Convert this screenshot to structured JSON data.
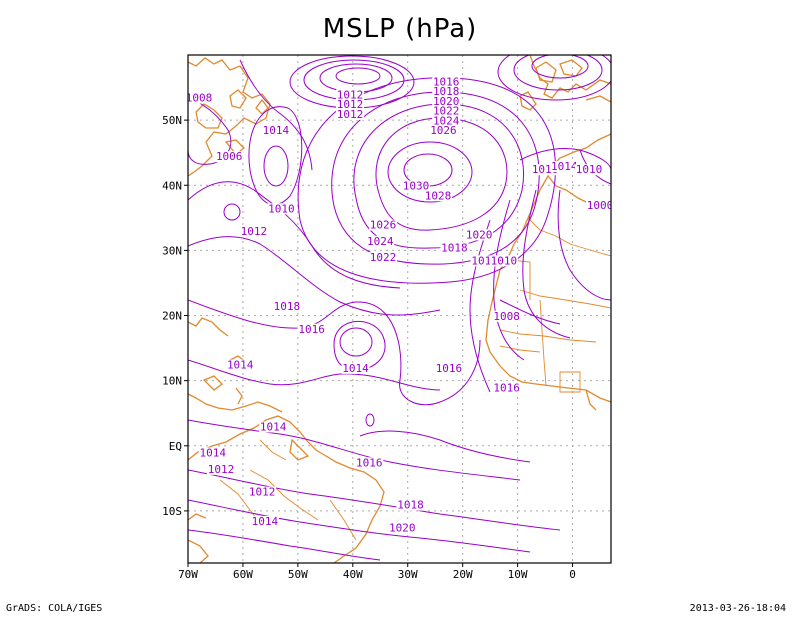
{
  "title": "MSLP (hPa)",
  "footer": {
    "left": "GrADS: COLA/IGES",
    "right": "2013-03-26-18:04"
  },
  "colors": {
    "isobar": "#9900cc",
    "coast": "#e08a2e",
    "grid": "#aaaaaa",
    "frame": "#000000"
  },
  "map": {
    "lon_range": [
      -70,
      7
    ],
    "lat_range": [
      -18,
      60
    ],
    "lon_ticks": [
      {
        "lon": -70,
        "label": "70W"
      },
      {
        "lon": -60,
        "label": "60W"
      },
      {
        "lon": -50,
        "label": "50W"
      },
      {
        "lon": -40,
        "label": "40W"
      },
      {
        "lon": -30,
        "label": "30W"
      },
      {
        "lon": -20,
        "label": "20W"
      },
      {
        "lon": -10,
        "label": "10W"
      },
      {
        "lon": 0,
        "label": "0"
      }
    ],
    "lat_ticks": [
      {
        "lat": 50,
        "label": "50N"
      },
      {
        "lat": 40,
        "label": "40N"
      },
      {
        "lat": 30,
        "label": "30N"
      },
      {
        "lat": 20,
        "label": "20N"
      },
      {
        "lat": 10,
        "label": "10N"
      },
      {
        "lat": 0,
        "label": "EQ"
      },
      {
        "lat": -10,
        "label": "10S"
      }
    ],
    "isobar_labels": [
      {
        "text": "1016",
        "lon": -23.0,
        "lat": 55.5
      },
      {
        "text": "1018",
        "lon": -23.0,
        "lat": 54.0
      },
      {
        "text": "1020",
        "lon": -23.0,
        "lat": 52.5
      },
      {
        "text": "1022",
        "lon": -23.0,
        "lat": 51.0
      },
      {
        "text": "1024",
        "lon": -23.0,
        "lat": 49.5
      },
      {
        "text": "1026",
        "lon": -23.5,
        "lat": 48.0
      },
      {
        "text": "1012",
        "lon": -40.5,
        "lat": 53.5
      },
      {
        "text": "1012",
        "lon": -40.5,
        "lat": 52.0
      },
      {
        "text": "1012",
        "lon": -40.5,
        "lat": 50.5
      },
      {
        "text": "1008",
        "lon": -68.0,
        "lat": 53.0
      },
      {
        "text": "1014",
        "lon": -54.0,
        "lat": 48.0
      },
      {
        "text": "1006",
        "lon": -62.5,
        "lat": 44.0
      },
      {
        "text": "1030",
        "lon": -28.5,
        "lat": 39.5
      },
      {
        "text": "1028",
        "lon": -24.5,
        "lat": 38.0
      },
      {
        "text": "1010",
        "lon": -53.0,
        "lat": 36.0
      },
      {
        "text": "1012",
        "lon": -58.0,
        "lat": 32.5
      },
      {
        "text": "1026",
        "lon": -34.5,
        "lat": 33.5
      },
      {
        "text": "1024",
        "lon": -35.0,
        "lat": 31.0
      },
      {
        "text": "1022",
        "lon": -34.5,
        "lat": 28.5
      },
      {
        "text": "1020",
        "lon": -17.0,
        "lat": 32.0
      },
      {
        "text": "1018",
        "lon": -21.5,
        "lat": 30.0
      },
      {
        "text": "1014",
        "lon": -16.0,
        "lat": 28.0
      },
      {
        "text": "1010",
        "lon": -12.5,
        "lat": 28.0
      },
      {
        "text": "1016",
        "lon": -5.0,
        "lat": 42.0
      },
      {
        "text": "1014",
        "lon": -1.5,
        "lat": 42.5
      },
      {
        "text": "1010",
        "lon": 3.0,
        "lat": 42.0
      },
      {
        "text": "1000",
        "lon": 5.0,
        "lat": 36.5
      },
      {
        "text": "1008",
        "lon": -12.0,
        "lat": 19.5
      },
      {
        "text": "1018",
        "lon": -52.0,
        "lat": 21.0
      },
      {
        "text": "1016",
        "lon": -47.5,
        "lat": 17.5
      },
      {
        "text": "1014",
        "lon": -60.5,
        "lat": 12.0
      },
      {
        "text": "1014",
        "lon": -39.5,
        "lat": 11.5
      },
      {
        "text": "1016",
        "lon": -22.5,
        "lat": 11.5
      },
      {
        "text": "1016",
        "lon": -12.0,
        "lat": 8.5
      },
      {
        "text": "1014",
        "lon": -54.5,
        "lat": 2.5
      },
      {
        "text": "1014",
        "lon": -65.5,
        "lat": -1.5
      },
      {
        "text": "1012",
        "lon": -64.0,
        "lat": -4.0
      },
      {
        "text": "1012",
        "lon": -56.5,
        "lat": -7.5
      },
      {
        "text": "1016",
        "lon": -37.0,
        "lat": -3.0
      },
      {
        "text": "1018",
        "lon": -29.5,
        "lat": -9.5
      },
      {
        "text": "1014",
        "lon": -56.0,
        "lat": -12.0
      },
      {
        "text": "1020",
        "lon": -31.0,
        "lat": -13.0
      }
    ]
  }
}
